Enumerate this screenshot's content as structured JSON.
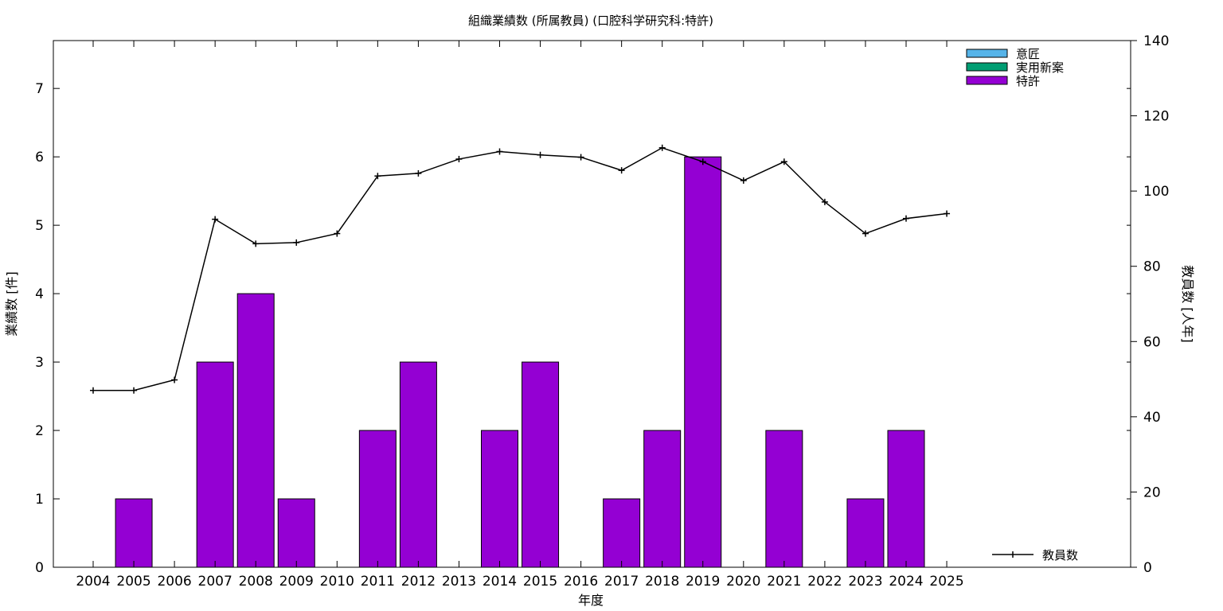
{
  "chart_data": {
    "type": "bar",
    "title": "組織業績数 (所属教員) (口腔科学研究科:特許)",
    "xlabel": "年度",
    "ylabel": "業績数 [件]",
    "y2label": "教員数 [人年]",
    "categories": [
      "2004",
      "2005",
      "2006",
      "2007",
      "2008",
      "2009",
      "2010",
      "2011",
      "2012",
      "2013",
      "2014",
      "2015",
      "2016",
      "2017",
      "2018",
      "2019",
      "2020",
      "2021",
      "2022",
      "2023",
      "2024",
      "2025"
    ],
    "ylim": [
      0,
      7.7
    ],
    "yticks": [
      0,
      1,
      2,
      3,
      4,
      5,
      6,
      7
    ],
    "y2lim": [
      0,
      140
    ],
    "y2ticks": [
      0,
      20,
      40,
      60,
      80,
      100,
      120,
      140
    ],
    "legend_position": "top-right",
    "series": [
      {
        "name": "意匠",
        "kind": "bar",
        "color": "#56b4e9",
        "values": [
          0,
          0,
          0,
          0,
          0,
          0,
          0,
          0,
          0,
          0,
          0,
          0,
          0,
          0,
          0,
          0,
          0,
          0,
          0,
          0,
          0,
          0
        ]
      },
      {
        "name": "実用新案",
        "kind": "bar",
        "color": "#009e73",
        "values": [
          0,
          0,
          0,
          0,
          0,
          0,
          0,
          0,
          0,
          0,
          0,
          0,
          0,
          0,
          0,
          0,
          0,
          0,
          0,
          0,
          0,
          0
        ]
      },
      {
        "name": "特許",
        "kind": "bar",
        "color": "#9400d3",
        "values": [
          0,
          1,
          0,
          3,
          4,
          1,
          0,
          2,
          3,
          0,
          2,
          3,
          0,
          1,
          2,
          6,
          0,
          2,
          0,
          1,
          2,
          0
        ]
      },
      {
        "name": "教員数",
        "kind": "line",
        "axis": "right",
        "color": "#000000",
        "legend_position": "bottom-right",
        "values": [
          47,
          47,
          49.8,
          92.5,
          86,
          86.3,
          88.7,
          104,
          104.7,
          108.5,
          110.5,
          109.6,
          109,
          105.5,
          111.5,
          107.8,
          102.8,
          107.8,
          97.1,
          88.7,
          92.7,
          94
        ]
      }
    ]
  }
}
